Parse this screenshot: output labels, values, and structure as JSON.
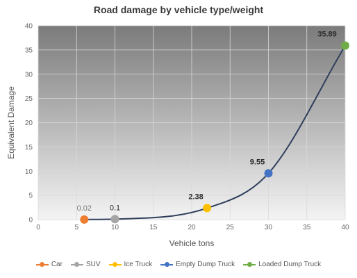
{
  "chart_data": {
    "type": "scatter",
    "title": "Road damage by vehicle type/weight",
    "xlabel": "Vehicle tons",
    "ylabel": "Equivalent Damage",
    "xlim": [
      0,
      40
    ],
    "ylim": [
      0,
      40
    ],
    "x_ticks": [
      "0",
      "5",
      "10",
      "15",
      "20",
      "25",
      "30",
      "35",
      "40"
    ],
    "y_ticks": [
      "0",
      "5",
      "10",
      "15",
      "20",
      "25",
      "30",
      "35",
      "40"
    ],
    "grid": true,
    "legend_position": "bottom",
    "trend_line": {
      "color": "#2f3f5c"
    },
    "series": [
      {
        "name": "Car",
        "x": 6,
        "y": 0.02,
        "label": "0.02",
        "color": "#ed7d31"
      },
      {
        "name": "SUV",
        "x": 10,
        "y": 0.1,
        "label": "0.1",
        "color": "#a5a5a5"
      },
      {
        "name": "Ice Truck",
        "x": 22,
        "y": 2.38,
        "label": "2.38",
        "color": "#ffc000"
      },
      {
        "name": "Empty Dump Truck",
        "x": 30,
        "y": 9.55,
        "label": "9.55",
        "color": "#4472c4"
      },
      {
        "name": "Loaded Dump Truck",
        "x": 40,
        "y": 35.89,
        "label": "35.89",
        "color": "#70ad47"
      }
    ]
  }
}
